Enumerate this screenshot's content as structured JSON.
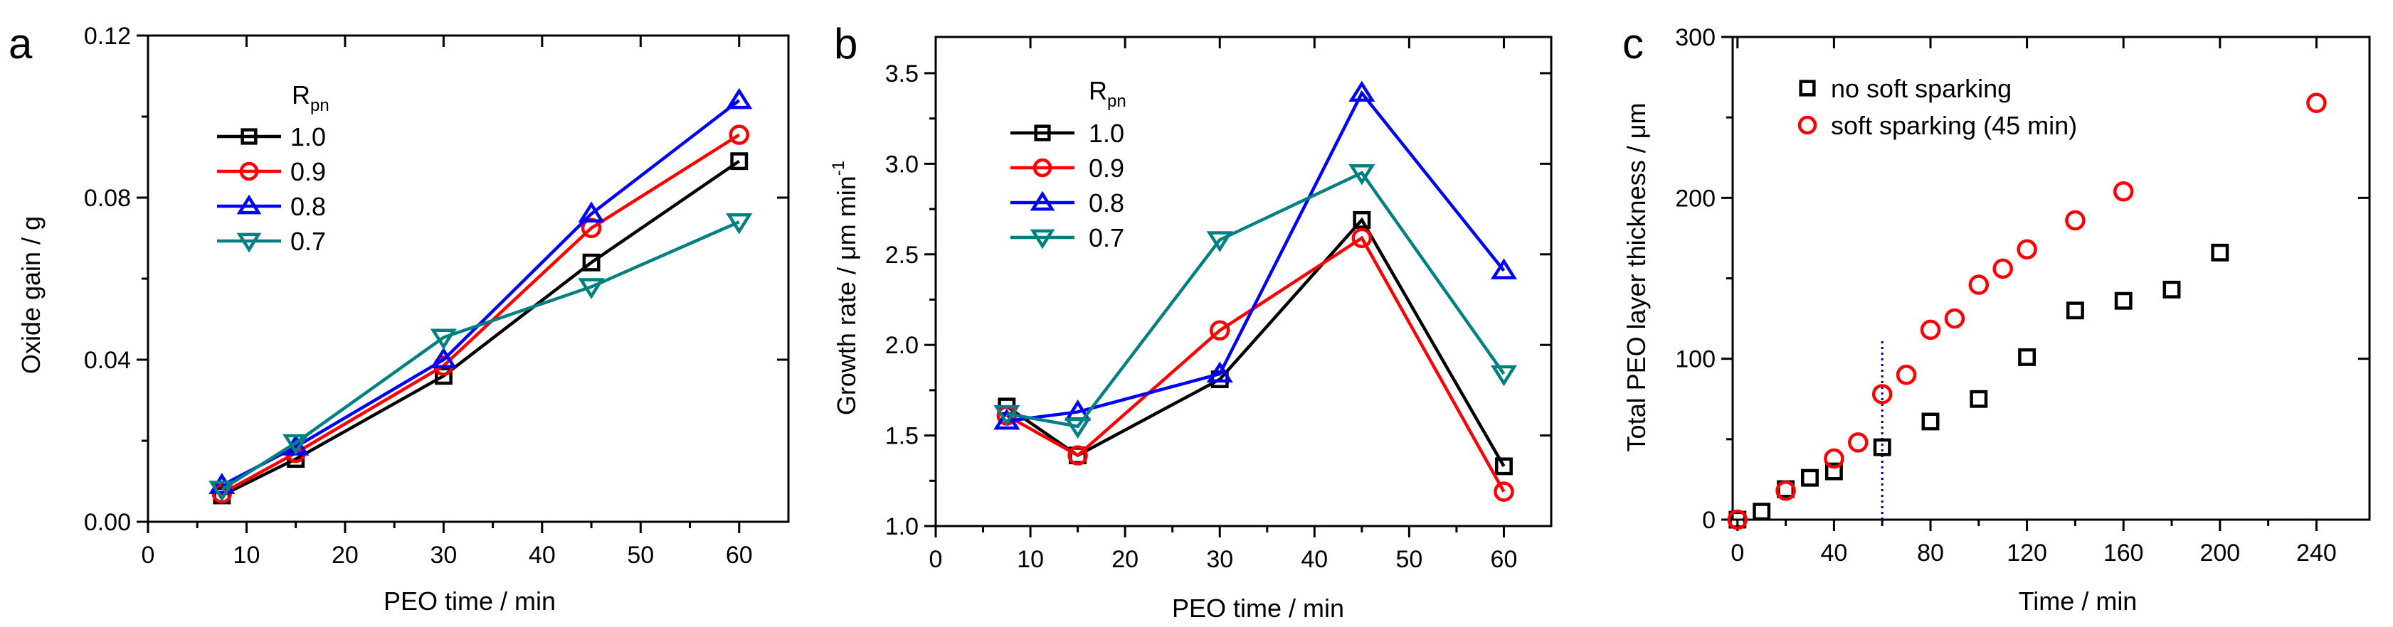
{
  "colors": {
    "black": "#000000",
    "red": "#ff0000",
    "blue": "#0000ff",
    "teal": "#008080",
    "guide": "#00008b"
  },
  "chart_data": [
    {
      "panel": "a",
      "type": "line",
      "xlabel": "PEO time / min",
      "ylabel": "Oxide gain / g",
      "xlim": [
        0,
        65
      ],
      "ylim": [
        0,
        0.12
      ],
      "xticks": [
        "0",
        "10",
        "20",
        "30",
        "40",
        "50",
        "60"
      ],
      "yticks": [
        "0.00",
        "0.04",
        "0.08",
        "0.12"
      ],
      "legend_title": "R",
      "legend_title_sub": "pn",
      "legend_position": "upper-left",
      "x": [
        7.5,
        15,
        30,
        45,
        60
      ],
      "series": [
        {
          "name": "1.0",
          "color": "#000000",
          "marker": "square",
          "values": [
            0.0065,
            0.0155,
            0.036,
            0.064,
            0.089
          ]
        },
        {
          "name": "0.9",
          "color": "#ff0000",
          "marker": "circle",
          "values": [
            0.007,
            0.017,
            0.0385,
            0.0725,
            0.0955
          ]
        },
        {
          "name": "0.8",
          "color": "#0000ff",
          "marker": "triangle-up",
          "values": [
            0.009,
            0.0185,
            0.04,
            0.076,
            0.104
          ]
        },
        {
          "name": "0.7",
          "color": "#008080",
          "marker": "triangle-down",
          "values": [
            0.008,
            0.0195,
            0.0455,
            0.058,
            0.074
          ]
        }
      ]
    },
    {
      "panel": "b",
      "type": "line",
      "xlabel": "PEO time / min",
      "ylabel": "Growth rate / μm min",
      "ylabel_sup": "-1",
      "xlim": [
        0,
        65
      ],
      "ylim": [
        1.0,
        3.7
      ],
      "xticks": [
        "0",
        "10",
        "20",
        "30",
        "40",
        "50",
        "60"
      ],
      "yticks": [
        "1.0",
        "1.5",
        "2.0",
        "2.5",
        "3.0",
        "3.5"
      ],
      "legend_title": "R",
      "legend_title_sub": "pn",
      "legend_position": "upper-left",
      "x": [
        7.5,
        15,
        30,
        45,
        60
      ],
      "series": [
        {
          "name": "1.0",
          "color": "#000000",
          "marker": "square",
          "values": [
            1.66,
            1.39,
            1.81,
            2.69,
            1.33
          ]
        },
        {
          "name": "0.9",
          "color": "#ff0000",
          "marker": "circle",
          "values": [
            1.61,
            1.39,
            2.08,
            2.59,
            1.19
          ]
        },
        {
          "name": "0.8",
          "color": "#0000ff",
          "marker": "triangle-up",
          "values": [
            1.58,
            1.63,
            1.84,
            3.39,
            2.41
          ]
        },
        {
          "name": "0.7",
          "color": "#008080",
          "marker": "triangle-down",
          "values": [
            1.62,
            1.55,
            2.58,
            2.95,
            1.84
          ]
        }
      ]
    },
    {
      "panel": "c",
      "type": "scatter",
      "xlabel": "Time / min",
      "ylabel": "Total PEO layer thickness / μm",
      "xlim": [
        -2,
        262
      ],
      "ylim": [
        0,
        300
      ],
      "xticks": [
        "0",
        "40",
        "80",
        "120",
        "160",
        "200",
        "240"
      ],
      "yticks": [
        "0",
        "100",
        "200",
        "300"
      ],
      "legend_position": "upper-left",
      "guide_line_x": 60,
      "series": [
        {
          "name": "no soft sparking",
          "color": "#000000",
          "marker": "square",
          "x": [
            0,
            10,
            20,
            30,
            40,
            60,
            80,
            100,
            120,
            140,
            160,
            180,
            200
          ],
          "values": [
            0,
            5,
            19,
            26,
            30,
            45,
            61,
            75,
            101,
            130,
            136,
            143,
            166
          ]
        },
        {
          "name": "soft sparking (45 min)",
          "color": "#ff0000",
          "marker": "circle",
          "x": [
            0,
            20,
            40,
            50,
            60,
            70,
            80,
            90,
            100,
            110,
            120,
            140,
            160,
            240
          ],
          "values": [
            0,
            18,
            38,
            48,
            78,
            90,
            118,
            125,
            146,
            156,
            168,
            186,
            204,
            259
          ]
        }
      ]
    }
  ]
}
